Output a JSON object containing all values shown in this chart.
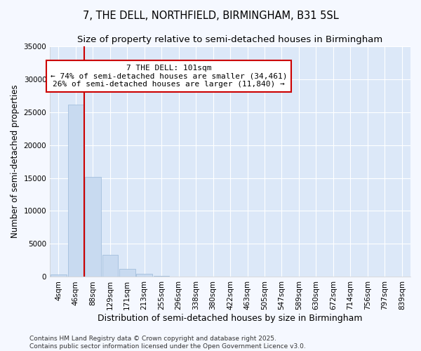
{
  "title": "7, THE DELL, NORTHFIELD, BIRMINGHAM, B31 5SL",
  "subtitle": "Size of property relative to semi-detached houses in Birmingham",
  "xlabel": "Distribution of semi-detached houses by size in Birmingham",
  "ylabel": "Number of semi-detached properties",
  "bin_labels": [
    "4sqm",
    "46sqm",
    "88sqm",
    "129sqm",
    "171sqm",
    "213sqm",
    "255sqm",
    "296sqm",
    "338sqm",
    "380sqm",
    "422sqm",
    "463sqm",
    "505sqm",
    "547sqm",
    "589sqm",
    "630sqm",
    "672sqm",
    "714sqm",
    "756sqm",
    "797sqm",
    "839sqm"
  ],
  "bar_values": [
    400,
    26100,
    15200,
    3300,
    1200,
    500,
    200,
    50,
    0,
    0,
    0,
    0,
    0,
    0,
    0,
    0,
    0,
    0,
    0,
    0,
    0
  ],
  "bar_color": "#c8daf0",
  "bar_edge_color": "#9ab8d8",
  "plot_bg_color": "#dce8f8",
  "fig_bg_color": "#f5f8ff",
  "grid_color": "#ffffff",
  "marker_line_color": "#cc0000",
  "annotation_text": "7 THE DELL: 101sqm\n← 74% of semi-detached houses are smaller (34,461)\n26% of semi-detached houses are larger (11,840) →",
  "annotation_box_color": "#ffffff",
  "annotation_box_edge": "#cc0000",
  "ylim": [
    0,
    35000
  ],
  "yticks": [
    0,
    5000,
    10000,
    15000,
    20000,
    25000,
    30000,
    35000
  ],
  "footnote": "Contains HM Land Registry data © Crown copyright and database right 2025.\nContains public sector information licensed under the Open Government Licence v3.0.",
  "title_fontsize": 10.5,
  "subtitle_fontsize": 9.5,
  "tick_fontsize": 7.5,
  "ylabel_fontsize": 8.5,
  "xlabel_fontsize": 9,
  "annot_fontsize": 8,
  "footnote_fontsize": 6.5
}
